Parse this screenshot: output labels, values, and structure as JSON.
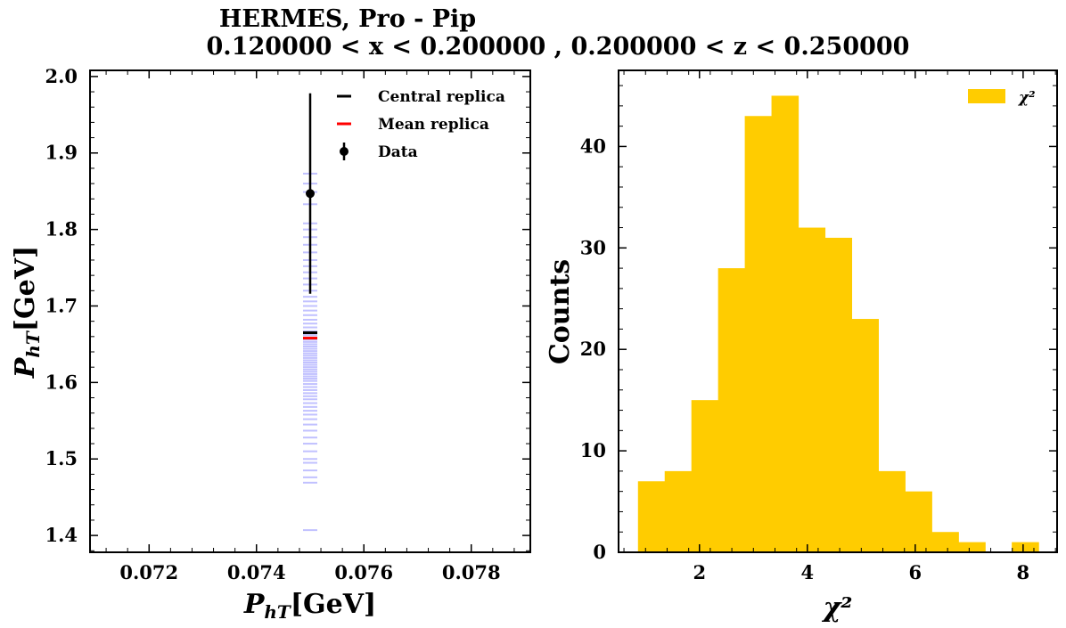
{
  "title": {
    "line1": "HERMES, Pro - Pip",
    "line2": "0.120000 < x < 0.200000 , 0.200000 < z < 0.250000"
  },
  "colors": {
    "central": "#000000",
    "mean": "#ff0000",
    "replica": "#3333ff",
    "data": "#000000",
    "hist": "#ffcc00"
  },
  "chart_data": [
    {
      "type": "scatter",
      "xlabel": "P_hT[GeV]",
      "ylabel": "P_hT[GeV]",
      "xlim": [
        0.0709,
        0.0791
      ],
      "ylim": [
        1.378,
        2.008
      ],
      "xticks": [
        0.072,
        0.074,
        0.076,
        0.078
      ],
      "xtick_labels": [
        "0.072",
        "0.074",
        "0.076",
        "0.078"
      ],
      "yticks": [
        1.4,
        1.5,
        1.6,
        1.7,
        1.8,
        1.9,
        2.0
      ],
      "ytick_labels": [
        "1.4",
        "1.5",
        "1.6",
        "1.7",
        "1.8",
        "1.9",
        "2.0"
      ],
      "legend": {
        "position": "top-right",
        "entries": [
          "Central replica",
          "Mean replica",
          "Data"
        ]
      },
      "data_point": {
        "x": 0.075,
        "y": 1.847,
        "yerr": 0.131
      },
      "central_replica": {
        "x": 0.075,
        "y": 1.665
      },
      "mean_replica": {
        "x": 0.075,
        "y": 1.658
      },
      "replicas": {
        "x": 0.075,
        "values": [
          1.407,
          1.469,
          1.476,
          1.485,
          1.495,
          1.5,
          1.51,
          1.52,
          1.528,
          1.537,
          1.545,
          1.552,
          1.558,
          1.563,
          1.568,
          1.573,
          1.578,
          1.582,
          1.586,
          1.59,
          1.594,
          1.598,
          1.602,
          1.605,
          1.608,
          1.611,
          1.614,
          1.617,
          1.62,
          1.623,
          1.626,
          1.629,
          1.632,
          1.635,
          1.638,
          1.641,
          1.644,
          1.647,
          1.65,
          1.653,
          1.656,
          1.659,
          1.662,
          1.667,
          1.672,
          1.677,
          1.682,
          1.688,
          1.694,
          1.7,
          1.706,
          1.712,
          1.72,
          1.728,
          1.736,
          1.744,
          1.752,
          1.76,
          1.77,
          1.78,
          1.79,
          1.8,
          1.808,
          1.833,
          1.849,
          1.86,
          1.873
        ]
      }
    },
    {
      "type": "bar",
      "xlabel": "χ²",
      "ylabel": "Counts",
      "xlim": [
        0.5,
        8.63
      ],
      "ylim": [
        0,
        47.5
      ],
      "xticks": [
        2,
        4,
        6,
        8
      ],
      "xtick_labels": [
        "2",
        "4",
        "6",
        "8"
      ],
      "yticks": [
        0,
        10,
        20,
        30,
        40
      ],
      "ytick_labels": [
        "0",
        "10",
        "20",
        "30",
        "40"
      ],
      "legend": {
        "position": "top-right",
        "entries": [
          "χ²"
        ]
      },
      "bin_edges": [
        0.86,
        1.355,
        1.85,
        2.345,
        2.84,
        3.335,
        3.83,
        4.325,
        4.82,
        5.315,
        5.81,
        6.305,
        6.8,
        7.295,
        7.79,
        8.285
      ],
      "values": [
        7,
        8,
        15,
        28,
        43,
        45,
        32,
        31,
        23,
        8,
        6,
        2,
        1,
        0,
        1
      ]
    }
  ]
}
